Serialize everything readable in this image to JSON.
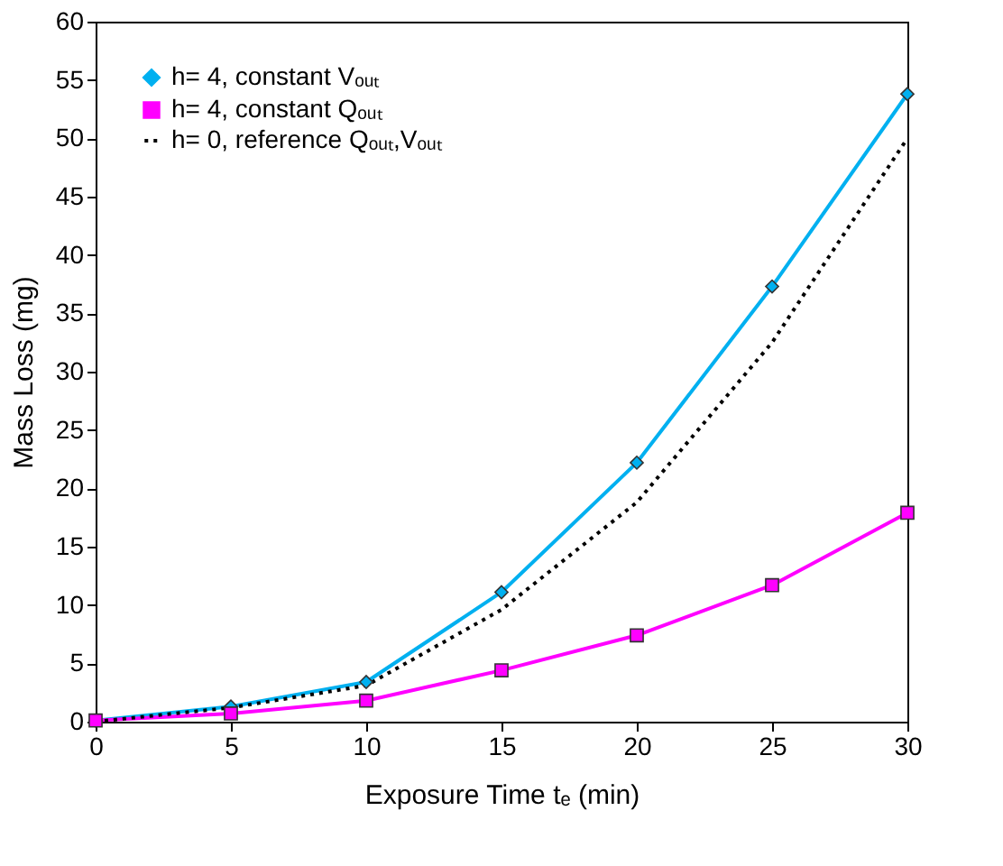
{
  "chart_data": {
    "type": "line",
    "xlabel": "Exposure Time tₑ (min)",
    "ylabel": "Mass Loss (mg)",
    "x": [
      0,
      5,
      10,
      15,
      20,
      25,
      30
    ],
    "series": [
      {
        "name": "h= 4, constant Vₒᵤₜ",
        "color": "#00b0f0",
        "marker": "diamond",
        "line_style": "solid",
        "values": [
          0.1,
          1.3,
          3.4,
          11.1,
          22.2,
          37.3,
          53.8
        ]
      },
      {
        "name": "h= 4, constant Qₒᵤₜ",
        "color": "#ff00ff",
        "marker": "square",
        "line_style": "solid",
        "values": [
          0.1,
          0.7,
          1.8,
          4.4,
          7.4,
          11.7,
          17.9
        ]
      },
      {
        "name": "h= 0, reference Qₒᵤₜ,Vₒᵤₜ",
        "color": "#000000",
        "marker": "none",
        "line_style": "dotted",
        "values": [
          0,
          1.2,
          3.1,
          9.6,
          18.8,
          32.5,
          50
        ]
      }
    ],
    "xlim": [
      0,
      30
    ],
    "xticks": [
      0,
      5,
      10,
      15,
      20,
      25,
      30
    ],
    "ylim": [
      0,
      60
    ],
    "yticks": [
      0,
      5,
      10,
      15,
      20,
      25,
      30,
      35,
      40,
      45,
      50,
      55,
      60
    ],
    "grid": false,
    "legend": "top left"
  }
}
